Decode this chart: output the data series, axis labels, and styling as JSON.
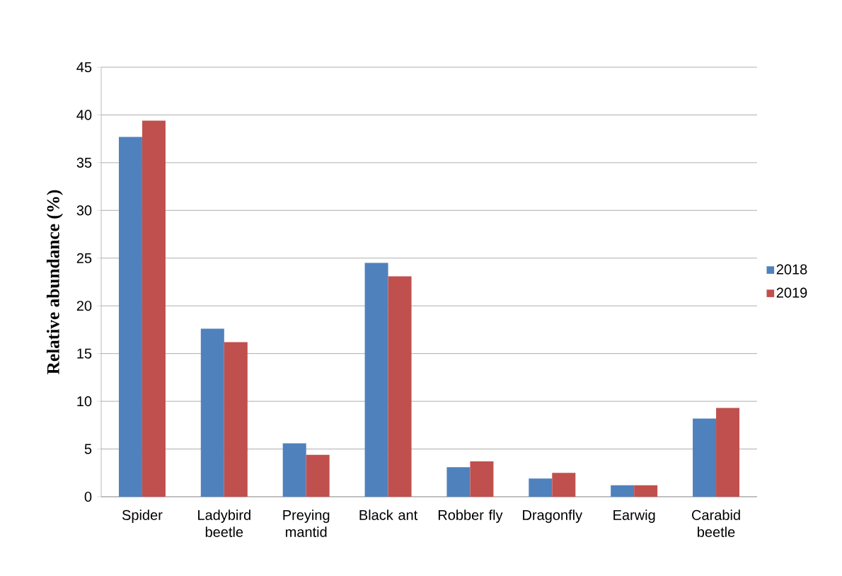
{
  "chart_data": {
    "type": "bar",
    "ylabel": "Relative abundance (%)",
    "categories": [
      "Spider",
      "Ladybird beetle",
      "Preying mantid",
      "Black ant",
      "Robber fly",
      "Dragonfly",
      "Earwig",
      "Carabid beetle"
    ],
    "series": [
      {
        "name": "2018",
        "color": "#4f81bd",
        "values": [
          37.7,
          17.6,
          5.6,
          24.5,
          3.1,
          1.9,
          1.2,
          8.2
        ]
      },
      {
        "name": "2019",
        "color": "#c0504d",
        "values": [
          39.4,
          16.2,
          4.4,
          23.1,
          3.7,
          2.5,
          1.2,
          9.3
        ]
      }
    ],
    "ylim": [
      0,
      45
    ],
    "yticks": [
      0,
      5,
      10,
      15,
      20,
      25,
      30,
      35,
      40,
      45
    ],
    "grid": "y",
    "legend": "right"
  }
}
